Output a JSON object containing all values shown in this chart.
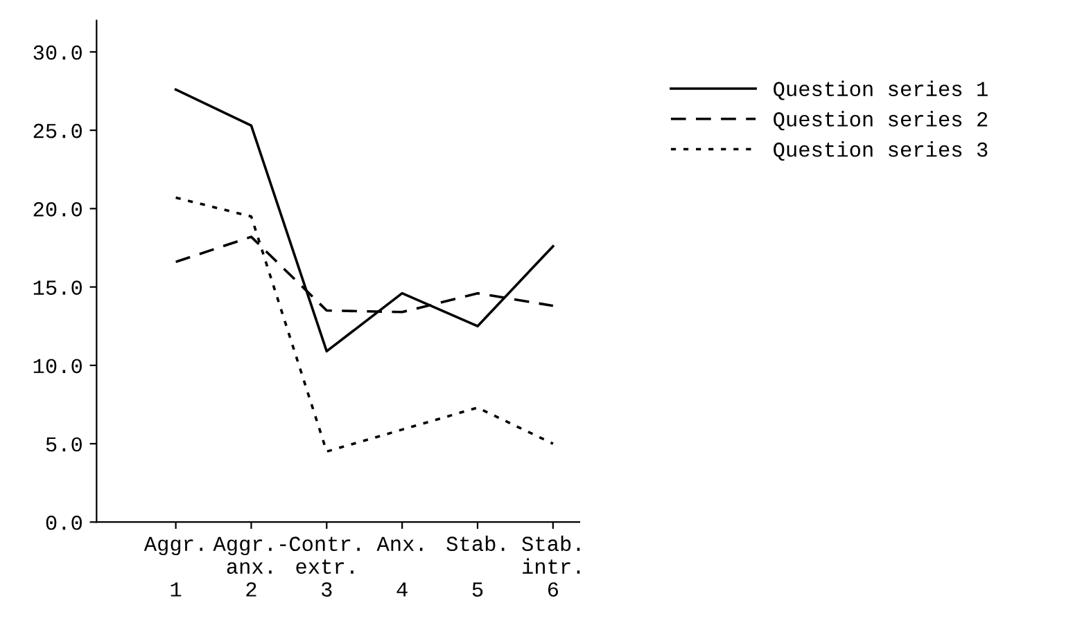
{
  "chart_data": {
    "type": "line",
    "categories": [
      "Aggr.\n\n1",
      "Aggr.-\nanx.\n2",
      "Contr.\nextr.\n3",
      "Anx.\n\n4",
      "Stab.\n\n5",
      "Stab.\nintr.\n6"
    ],
    "series": [
      {
        "name": "Question series 1",
        "color": "#000000",
        "line_style": "solid",
        "values": [
          27.6,
          25.3,
          10.9,
          14.6,
          12.5,
          17.6
        ]
      },
      {
        "name": "Question series 2",
        "color": "#000000",
        "line_style": "dashed",
        "values": [
          16.6,
          18.2,
          13.5,
          13.4,
          14.6,
          13.8
        ]
      },
      {
        "name": "Question series 3",
        "color": "#000000",
        "line_style": "dotted",
        "values": [
          20.7,
          19.5,
          4.5,
          5.9,
          7.3,
          5.0
        ]
      }
    ],
    "ylim": [
      0,
      32
    ],
    "yticks": [
      {
        "value": 0,
        "label": "0.0"
      },
      {
        "value": 5,
        "label": "5.0"
      },
      {
        "value": 10,
        "label": "10.0"
      },
      {
        "value": 15,
        "label": "15.0"
      },
      {
        "value": 20,
        "label": "20.0"
      },
      {
        "value": 25,
        "label": "25.0"
      },
      {
        "value": 30,
        "label": "30.0"
      }
    ],
    "grid": false,
    "legend": "right",
    "marker": "none"
  }
}
